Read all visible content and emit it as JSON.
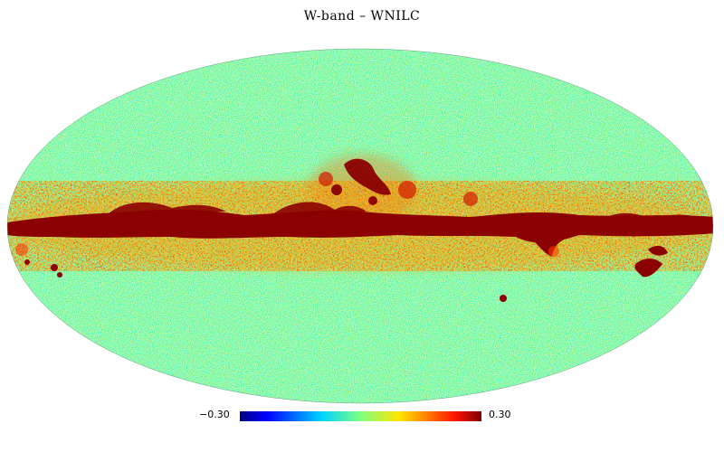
{
  "map": {
    "title": "W-band – WNILC",
    "projection": "mollweide",
    "colormap": "jet",
    "features": "noisy sky map with a saturated dark-red galactic-plane band across the equator and red patches above the center and at lower right"
  },
  "colorbar": {
    "min_label": "−0.30",
    "max_label": "0.30",
    "min_value": -0.3,
    "max_value": 0.3
  }
}
